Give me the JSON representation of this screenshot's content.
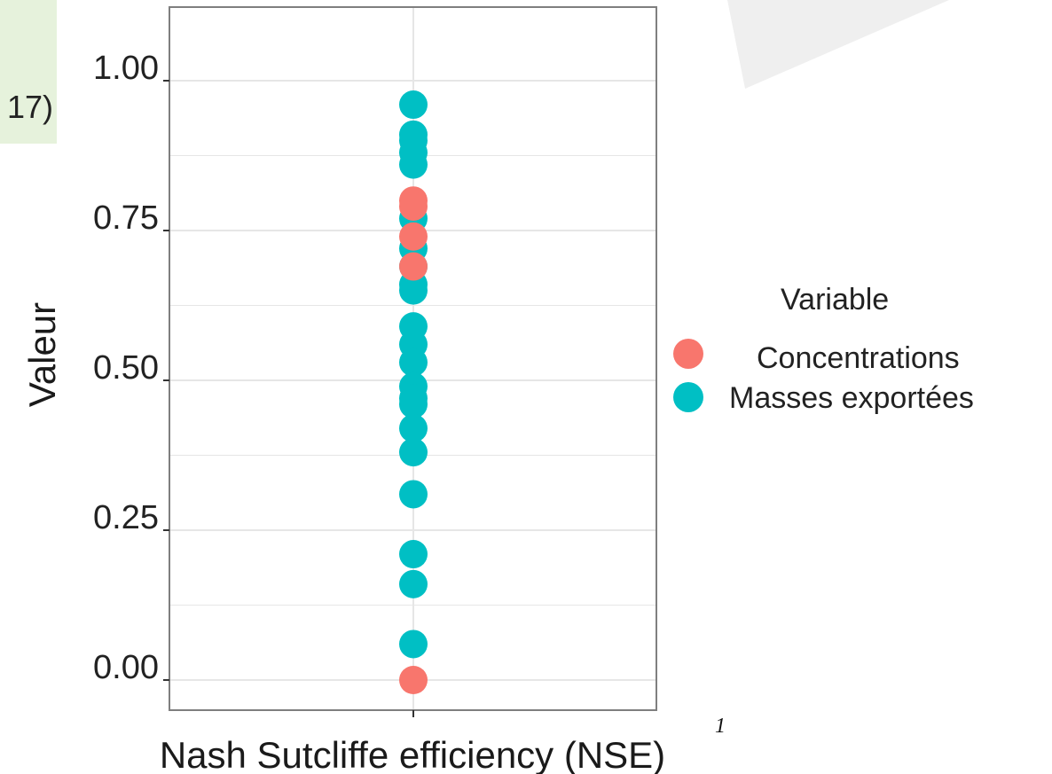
{
  "corner_fragment": "17)",
  "colors": {
    "concentrations": "#F8766D",
    "masses": "#00BFC4",
    "panel_border": "#7f7f7f",
    "grid": "#e6e6e6",
    "corner_bg": "#e6f2dc",
    "decor": "#efefef"
  },
  "chart_data": {
    "type": "scatter",
    "xlabel": "Nash Sutcliffe efficiency (NSE)",
    "xlabel_footnote": "1",
    "ylabel": "Valeur",
    "ylim": [
      -0.05,
      1.12
    ],
    "y_ticks": [
      "0.00",
      "0.25",
      "0.50",
      "0.75",
      "1.00"
    ],
    "y_tick_values": [
      0,
      0.25,
      0.5,
      0.75,
      1.0
    ],
    "grid": true,
    "legend": {
      "title": "Variable",
      "placement": "right",
      "entries": [
        "Concentrations",
        "Masses exportées"
      ]
    },
    "series": [
      {
        "name": "Masses exportées",
        "color": "#00BFC4",
        "values": [
          0.96,
          0.91,
          0.9,
          0.88,
          0.86,
          0.77,
          0.72,
          0.69,
          0.66,
          0.65,
          0.59,
          0.56,
          0.53,
          0.49,
          0.47,
          0.46,
          0.42,
          0.38,
          0.31,
          0.21,
          0.16,
          0.06
        ]
      },
      {
        "name": "Concentrations",
        "color": "#F8766D",
        "values": [
          0.8,
          0.79,
          0.74,
          0.69,
          0.0
        ]
      }
    ]
  }
}
